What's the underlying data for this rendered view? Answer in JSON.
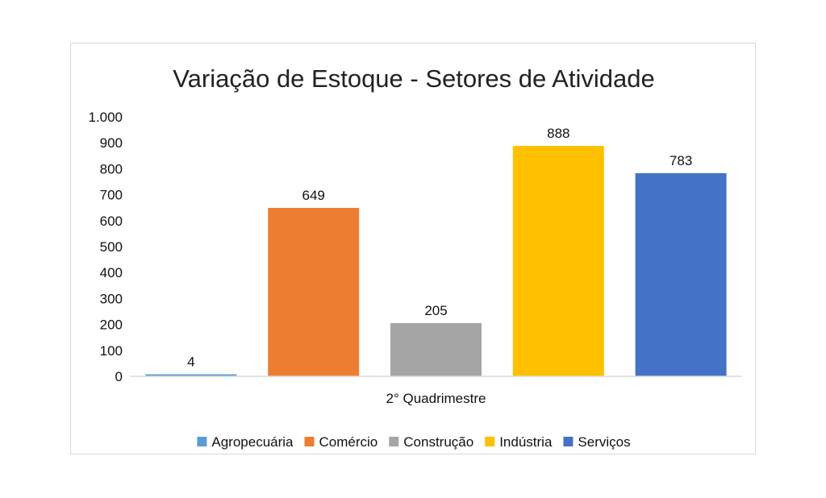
{
  "chart_data": {
    "type": "bar",
    "title": "Variação de Estoque - Setores de Atividade",
    "categories": [
      "2° Quadrimestre"
    ],
    "series": [
      {
        "name": "Agropecuária",
        "values": [
          4
        ],
        "label": "4",
        "color": "#5B9BD5"
      },
      {
        "name": "Comércio",
        "values": [
          649
        ],
        "label": "649",
        "color": "#ED7D31"
      },
      {
        "name": "Construção",
        "values": [
          205
        ],
        "label": "205",
        "color": "#A5A5A5"
      },
      {
        "name": "Indústria",
        "values": [
          888
        ],
        "label": "888",
        "color": "#FFC000"
      },
      {
        "name": "Serviços",
        "values": [
          783
        ],
        "label": "783",
        "color": "#4472C4"
      }
    ],
    "yticks": [
      {
        "value": 0,
        "label": "0"
      },
      {
        "value": 100,
        "label": "100"
      },
      {
        "value": 200,
        "label": "200"
      },
      {
        "value": 300,
        "label": "300"
      },
      {
        "value": 400,
        "label": "400"
      },
      {
        "value": 500,
        "label": "500"
      },
      {
        "value": 600,
        "label": "600"
      },
      {
        "value": 700,
        "label": "700"
      },
      {
        "value": 800,
        "label": "800"
      },
      {
        "value": 900,
        "label": "900"
      },
      {
        "value": 1000,
        "label": "1.000"
      }
    ],
    "ylim": [
      0,
      1000
    ],
    "grid": false,
    "legend_position": "bottom",
    "axis_color": "#D9D9D9"
  }
}
